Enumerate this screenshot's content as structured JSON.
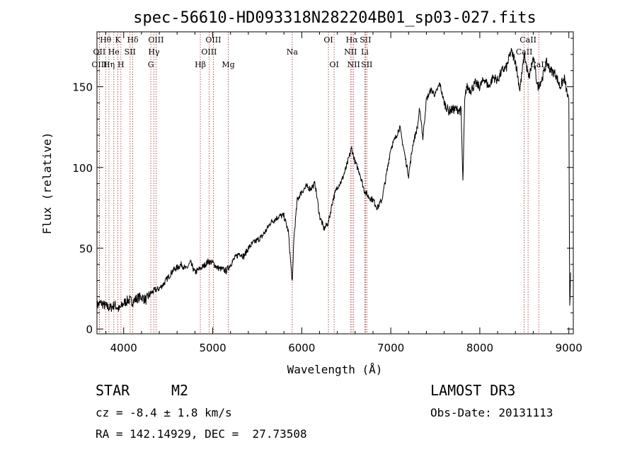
{
  "chart_data": {
    "type": "line",
    "title": "spec-56610-HD093318N282204B01_sp03-027.fits",
    "xlabel": "Wavelength (Å)",
    "ylabel": "Flux (relative)",
    "xlim": [
      3700,
      9050
    ],
    "ylim": [
      -3,
      184
    ],
    "xticks": [
      4000,
      5000,
      6000,
      7000,
      8000,
      9000
    ],
    "xtick_labels": [
      "4000",
      "5000",
      "6000",
      "7000",
      "8000",
      "9000"
    ],
    "yticks": [
      0,
      50,
      100,
      150
    ],
    "ytick_labels": [
      "0",
      "50",
      "100",
      "150"
    ],
    "grid": false,
    "spectrum": {
      "x": [
        3700,
        3750,
        3800,
        3850,
        3900,
        3950,
        4000,
        4050,
        4100,
        4150,
        4200,
        4250,
        4300,
        4350,
        4400,
        4450,
        4500,
        4550,
        4600,
        4650,
        4700,
        4750,
        4800,
        4850,
        4900,
        4950,
        5000,
        5050,
        5100,
        5150,
        5200,
        5250,
        5300,
        5350,
        5400,
        5450,
        5500,
        5550,
        5600,
        5650,
        5700,
        5750,
        5800,
        5850,
        5880,
        5895,
        5910,
        5950,
        6000,
        6050,
        6100,
        6150,
        6200,
        6250,
        6300,
        6350,
        6400,
        6450,
        6500,
        6530,
        6560,
        6600,
        6650,
        6700,
        6750,
        6800,
        6850,
        6900,
        6950,
        7000,
        7050,
        7100,
        7150,
        7200,
        7250,
        7300,
        7320,
        7340,
        7360,
        7400,
        7450,
        7500,
        7550,
        7600,
        7650,
        7700,
        7750,
        7790,
        7810,
        7830,
        7850,
        7900,
        7950,
        8000,
        8050,
        8100,
        8150,
        8200,
        8250,
        8300,
        8350,
        8400,
        8450,
        8500,
        8550,
        8600,
        8650,
        8700,
        8750,
        8800,
        8850,
        8900,
        8950,
        9000,
        9010,
        9020
      ],
      "y": [
        15,
        16,
        14,
        13,
        15,
        12,
        16,
        18,
        17,
        19,
        20,
        18,
        22,
        24,
        25,
        28,
        32,
        36,
        38,
        40,
        37,
        41,
        35,
        37,
        39,
        42,
        41,
        38,
        37,
        36,
        40,
        44,
        47,
        45,
        50,
        53,
        55,
        57,
        61,
        66,
        68,
        70,
        70,
        60,
        38,
        28,
        55,
        80,
        85,
        88,
        87,
        90,
        70,
        62,
        66,
        80,
        88,
        92,
        100,
        106,
        112,
        103,
        97,
        86,
        82,
        80,
        75,
        80,
        95,
        112,
        118,
        125,
        110,
        95,
        115,
        125,
        135,
        130,
        118,
        142,
        148,
        145,
        152,
        140,
        135,
        136,
        136,
        135,
        90,
        140,
        150,
        148,
        152,
        150,
        155,
        150,
        156,
        154,
        160,
        162,
        172,
        166,
        148,
        170,
        155,
        168,
        150,
        155,
        165,
        160,
        158,
        150,
        155,
        140,
        15,
        35
      ]
    },
    "lines": [
      {
        "name": "Hθ",
        "x": 3797,
        "row": 1
      },
      {
        "name": "OII",
        "x": 3727,
        "row": 2
      },
      {
        "name": "OIII",
        "x": 3727,
        "row": 3
      },
      {
        "name": "K",
        "x": 3934,
        "row": 1
      },
      {
        "name": "He",
        "x": 3889,
        "row": 2
      },
      {
        "name": "Hη",
        "x": 3835,
        "row": 3
      },
      {
        "name": "Hδ",
        "x": 4102,
        "row": 1
      },
      {
        "name": "SII",
        "x": 4072,
        "row": 2
      },
      {
        "name": "H",
        "x": 3969,
        "row": 3
      },
      {
        "name": "OIII",
        "x": 4363,
        "row": 1
      },
      {
        "name": "Hγ",
        "x": 4340,
        "row": 2
      },
      {
        "name": "G",
        "x": 4305,
        "row": 3
      },
      {
        "name": "Hβ",
        "x": 4861,
        "row": 3
      },
      {
        "name": "OIII",
        "x": 5007,
        "row": 1
      },
      {
        "name": "OIII",
        "x": 4959,
        "row": 2
      },
      {
        "name": "Mg",
        "x": 5175,
        "row": 3
      },
      {
        "name": "Na",
        "x": 5893,
        "row": 2
      },
      {
        "name": "OI",
        "x": 6300,
        "row": 1
      },
      {
        "name": "OI",
        "x": 6364,
        "row": 3
      },
      {
        "name": "Hα",
        "x": 6563,
        "row": 1
      },
      {
        "name": "NII",
        "x": 6548,
        "row": 2
      },
      {
        "name": "NII",
        "x": 6583,
        "row": 3
      },
      {
        "name": "SII",
        "x": 6716,
        "row": 1
      },
      {
        "name": "Li",
        "x": 6708,
        "row": 2
      },
      {
        "name": "SII",
        "x": 6731,
        "row": 3
      },
      {
        "name": "CaII",
        "x": 8542,
        "row": 1
      },
      {
        "name": "CaII",
        "x": 8498,
        "row": 2
      },
      {
        "name": "CaII",
        "x": 8662,
        "row": 3
      }
    ]
  },
  "info": {
    "object_type": "STAR",
    "subclass": "M2",
    "survey": "LAMOST DR3",
    "cz": "cz = -8.4 ± 1.8 km/s",
    "obs_date": "Obs-Date: 20131113",
    "coords": "RA = 142.14929, DEC =  27.73508"
  },
  "colors": {
    "line_marker": "#a52a2a",
    "spectrum": "#000000"
  }
}
